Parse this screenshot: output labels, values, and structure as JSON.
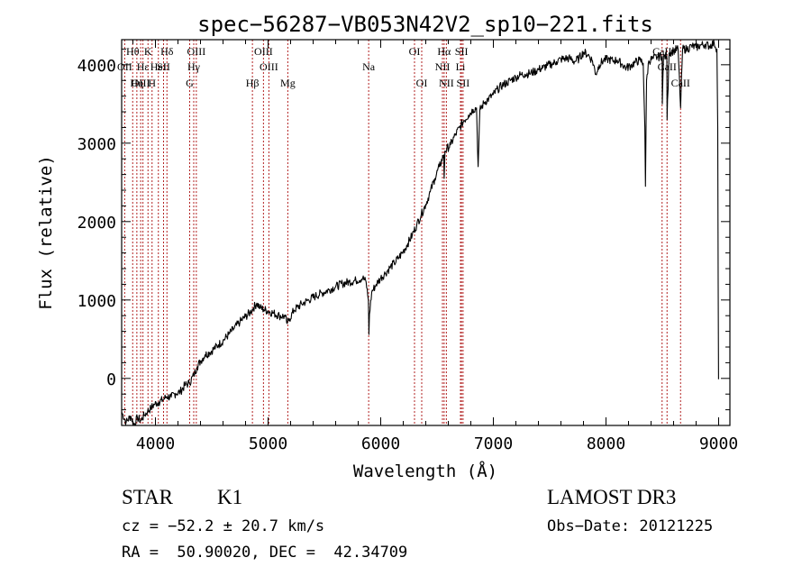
{
  "chart_data": {
    "type": "line",
    "title": "spec−56287−VB053N42V2_sp10−221.fits",
    "xlabel": "Wavelength (Å)",
    "ylabel": "Flux (relative)",
    "xlim": [
      3700,
      9100
    ],
    "ylim": [
      -600,
      4320
    ],
    "xticks": [
      4000,
      5000,
      6000,
      7000,
      8000,
      9000
    ],
    "xtick_labels": [
      "4000",
      "5000",
      "6000",
      "7000",
      "8000",
      "9000"
    ],
    "yticks": [
      0,
      1000,
      2000,
      3000,
      4000
    ],
    "ytick_labels": [
      "0",
      "1000",
      "2000",
      "3000",
      "4000"
    ],
    "line_color": "#000000",
    "marker_color": "#b22222",
    "series": [
      {
        "name": "flux",
        "points": [
          [
            3700,
            -430
          ],
          [
            3740,
            -560
          ],
          [
            3780,
            -480
          ],
          [
            3810,
            -590
          ],
          [
            3840,
            -500
          ],
          [
            3870,
            -540
          ],
          [
            3900,
            -470
          ],
          [
            3930,
            -420
          ],
          [
            3960,
            -380
          ],
          [
            3990,
            -330
          ],
          [
            4030,
            -300
          ],
          [
            4070,
            -270
          ],
          [
            4100,
            -230
          ],
          [
            4140,
            -240
          ],
          [
            4180,
            -190
          ],
          [
            4220,
            -170
          ],
          [
            4260,
            -90
          ],
          [
            4300,
            -60
          ],
          [
            4340,
            40
          ],
          [
            4370,
            150
          ],
          [
            4400,
            220
          ],
          [
            4440,
            300
          ],
          [
            4480,
            330
          ],
          [
            4520,
            380
          ],
          [
            4560,
            430
          ],
          [
            4600,
            480
          ],
          [
            4650,
            560
          ],
          [
            4700,
            640
          ],
          [
            4750,
            720
          ],
          [
            4800,
            790
          ],
          [
            4840,
            840
          ],
          [
            4870,
            900
          ],
          [
            4900,
            960
          ],
          [
            4930,
            900
          ],
          [
            4960,
            880
          ],
          [
            5000,
            860
          ],
          [
            5050,
            830
          ],
          [
            5100,
            800
          ],
          [
            5150,
            790
          ],
          [
            5170,
            700
          ],
          [
            5190,
            760
          ],
          [
            5230,
            870
          ],
          [
            5300,
            950
          ],
          [
            5360,
            1000
          ],
          [
            5420,
            1050
          ],
          [
            5480,
            1090
          ],
          [
            5540,
            1130
          ],
          [
            5600,
            1170
          ],
          [
            5660,
            1210
          ],
          [
            5720,
            1230
          ],
          [
            5780,
            1250
          ],
          [
            5840,
            1280
          ],
          [
            5870,
            1230
          ],
          [
            5890,
            1000
          ],
          [
            5895,
            560
          ],
          [
            5900,
            820
          ],
          [
            5920,
            1100
          ],
          [
            5960,
            1200
          ],
          [
            6000,
            1280
          ],
          [
            6040,
            1340
          ],
          [
            6080,
            1410
          ],
          [
            6120,
            1470
          ],
          [
            6160,
            1540
          ],
          [
            6200,
            1620
          ],
          [
            6240,
            1720
          ],
          [
            6280,
            1830
          ],
          [
            6320,
            1960
          ],
          [
            6360,
            2090
          ],
          [
            6400,
            2220
          ],
          [
            6440,
            2380
          ],
          [
            6480,
            2550
          ],
          [
            6520,
            2700
          ],
          [
            6560,
            2850
          ],
          [
            6563,
            2550
          ],
          [
            6570,
            2900
          ],
          [
            6620,
            2980
          ],
          [
            6660,
            3100
          ],
          [
            6700,
            3200
          ],
          [
            6740,
            3290
          ],
          [
            6780,
            3360
          ],
          [
            6820,
            3430
          ],
          [
            6850,
            3450
          ],
          [
            6865,
            2700
          ],
          [
            6880,
            3420
          ],
          [
            6920,
            3520
          ],
          [
            6960,
            3570
          ],
          [
            7000,
            3620
          ],
          [
            7040,
            3690
          ],
          [
            7080,
            3740
          ],
          [
            7120,
            3770
          ],
          [
            7160,
            3810
          ],
          [
            7200,
            3840
          ],
          [
            7240,
            3870
          ],
          [
            7280,
            3880
          ],
          [
            7320,
            3890
          ],
          [
            7360,
            3910
          ],
          [
            7400,
            3940
          ],
          [
            7440,
            3960
          ],
          [
            7480,
            3990
          ],
          [
            7520,
            4010
          ],
          [
            7560,
            4040
          ],
          [
            7600,
            4070
          ],
          [
            7640,
            4080
          ],
          [
            7680,
            4080
          ],
          [
            7720,
            4040
          ],
          [
            7760,
            4080
          ],
          [
            7800,
            4160
          ],
          [
            7840,
            4130
          ],
          [
            7880,
            4050
          ],
          [
            7910,
            3880
          ],
          [
            7940,
            4000
          ],
          [
            7980,
            4060
          ],
          [
            8020,
            4070
          ],
          [
            8060,
            4050
          ],
          [
            8100,
            4060
          ],
          [
            8140,
            4010
          ],
          [
            8180,
            3960
          ],
          [
            8220,
            3990
          ],
          [
            8260,
            4030
          ],
          [
            8300,
            4060
          ],
          [
            8330,
            4020
          ],
          [
            8345,
            3200
          ],
          [
            8350,
            2450
          ],
          [
            8360,
            3800
          ],
          [
            8380,
            4050
          ],
          [
            8420,
            4080
          ],
          [
            8460,
            4100
          ],
          [
            8498,
            4110
          ],
          [
            8500,
            3500
          ],
          [
            8510,
            4100
          ],
          [
            8540,
            4110
          ],
          [
            8542,
            3300
          ],
          [
            8560,
            4150
          ],
          [
            8600,
            4180
          ],
          [
            8640,
            4200
          ],
          [
            8662,
            3450
          ],
          [
            8680,
            4200
          ],
          [
            8720,
            4200
          ],
          [
            8760,
            4240
          ],
          [
            8800,
            4220
          ],
          [
            8840,
            4250
          ],
          [
            8880,
            4260
          ],
          [
            8920,
            4240
          ],
          [
            8960,
            4280
          ],
          [
            8985,
            4200
          ],
          [
            8992,
            3200
          ],
          [
            8996,
            1200
          ],
          [
            8999,
            -10
          ]
        ]
      }
    ],
    "spectral_lines": [
      {
        "label": "Hθ",
        "wl": 3798,
        "row": 0
      },
      {
        "label": "K",
        "wl": 3934,
        "row": 0
      },
      {
        "label": "Hδ",
        "wl": 4102,
        "row": 0
      },
      {
        "label": "OIII",
        "wl": 4363,
        "row": 0
      },
      {
        "label": "OIII",
        "wl": 4959,
        "row": 0
      },
      {
        "label": "OI",
        "wl": 6300,
        "row": 0
      },
      {
        "label": "Hα",
        "wl": 6563,
        "row": 0
      },
      {
        "label": "SII",
        "wl": 6717,
        "row": 0
      },
      {
        "label": "CaII",
        "wl": 8498,
        "row": 0
      },
      {
        "label": "OII",
        "wl": 3727,
        "row": 1
      },
      {
        "label": "Hε",
        "wl": 3889,
        "row": 1
      },
      {
        "label": "HeI",
        "wl": 4026,
        "row": 1
      },
      {
        "label": "SII",
        "wl": 4072,
        "row": 1
      },
      {
        "label": "Hγ",
        "wl": 4340,
        "row": 1
      },
      {
        "label": "OIII",
        "wl": 5007,
        "row": 1
      },
      {
        "label": "Na",
        "wl": 5893,
        "row": 1
      },
      {
        "label": "NII",
        "wl": 6548,
        "row": 1
      },
      {
        "label": "Li",
        "wl": 6708,
        "row": 1
      },
      {
        "label": "CaII",
        "wl": 8542,
        "row": 1
      },
      {
        "label": "OIII",
        "wl": 3869,
        "row": 2
      },
      {
        "label": "Hη",
        "wl": 3835,
        "row": 2
      },
      {
        "label": "H",
        "wl": 3970,
        "row": 2
      },
      {
        "label": "G",
        "wl": 4304,
        "row": 2
      },
      {
        "label": "Hβ",
        "wl": 4861,
        "row": 2
      },
      {
        "label": "Mg",
        "wl": 5175,
        "row": 2
      },
      {
        "label": "OI",
        "wl": 6364,
        "row": 2
      },
      {
        "label": "NII",
        "wl": 6583,
        "row": 2
      },
      {
        "label": "SII",
        "wl": 6731,
        "row": 2
      },
      {
        "label": "CaII",
        "wl": 8662,
        "row": 2
      }
    ]
  },
  "info": {
    "object_class": "STAR",
    "subclass": "K1",
    "survey": "LAMOST DR3",
    "cz": "cz = −52.2 ± 20.7 km/s",
    "obs_date": "Obs−Date: 20121225",
    "coords": "RA =  50.90020, DEC =  42.34709"
  }
}
